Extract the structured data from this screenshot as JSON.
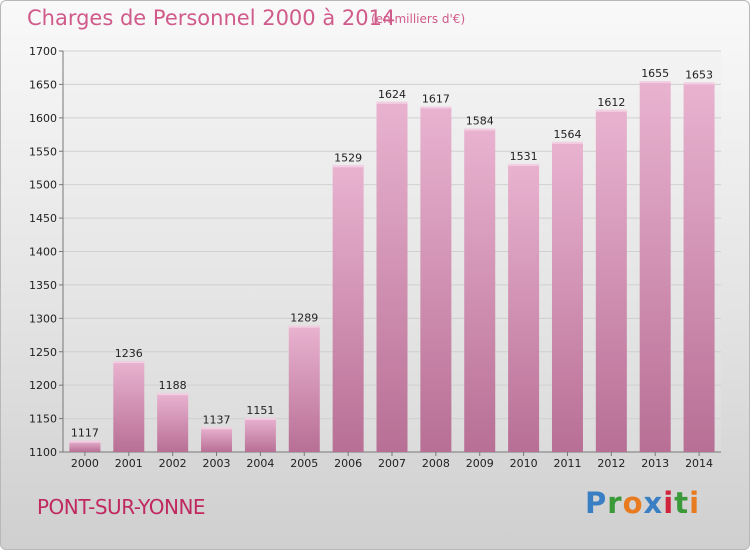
{
  "header": {
    "title": "Charges de Personnel 2000 à 2014",
    "subtitle": "(en milliers d'€)"
  },
  "footer": {
    "location": "PONT-SUR-YONNE",
    "logo_text": "Proxiti",
    "logo_colors": [
      "#3a7fc4",
      "#3a9a3a",
      "#e87a20",
      "#3a7fc4",
      "#d0243c",
      "#3a9a3a",
      "#e87a20"
    ]
  },
  "colors": {
    "bar": "#d98fb6",
    "bar_light": "#e9b3d0",
    "bar_dark": "#b86f95",
    "title": "#d05a8a",
    "location": "#c02860"
  },
  "chart_data": {
    "type": "bar",
    "title": "Charges de Personnel 2000 à 2014",
    "subtitle": "(en milliers d'€)",
    "categories": [
      "2000",
      "2001",
      "2002",
      "2003",
      "2004",
      "2005",
      "2006",
      "2007",
      "2008",
      "2009",
      "2010",
      "2011",
      "2012",
      "2013",
      "2014"
    ],
    "values": [
      1117,
      1236,
      1188,
      1137,
      1151,
      1289,
      1529,
      1624,
      1617,
      1584,
      1531,
      1564,
      1612,
      1655,
      1653
    ],
    "ylim": [
      1100,
      1700
    ],
    "yticks": [
      1100,
      1150,
      1200,
      1250,
      1300,
      1350,
      1400,
      1450,
      1500,
      1550,
      1600,
      1650,
      1700
    ],
    "grid": true,
    "legend": "none"
  }
}
